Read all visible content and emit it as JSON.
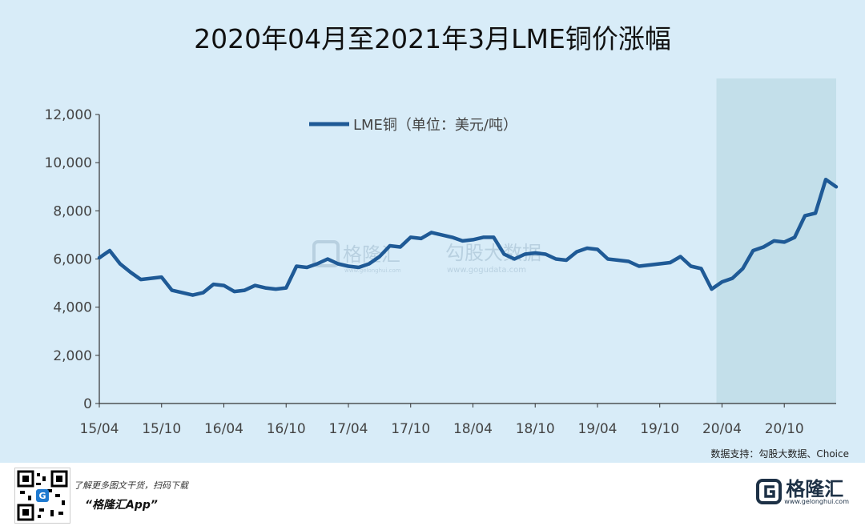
{
  "title": "2020年04月至2021年3月LME铜价涨幅",
  "source": "数据支持：勾股大数据、Choice",
  "footer": {
    "promo_text": "了解更多图文干货，扫码下载",
    "app_name": "“格隆汇App”",
    "logo_text": "格隆汇",
    "logo_url": "www.gelonghui.com"
  },
  "watermark": {
    "brand1": "格隆汇",
    "brand1_url": "www.gelonghui.com",
    "brand2": "勾股大数据",
    "brand2_url": "www.gogudata.com"
  },
  "colors": {
    "background": "#d8ecf8",
    "line": "#1f5a96",
    "shade": "#c3dfea",
    "axis": "#333333"
  },
  "chart_data": {
    "type": "line",
    "legend": "LME铜（单位：美元/吨）",
    "legend_position": "top-center",
    "ylim": [
      0,
      12000
    ],
    "yticks": [
      0,
      2000,
      4000,
      6000,
      8000,
      10000,
      12000
    ],
    "ytick_labels": [
      "0",
      "2,000",
      "4,000",
      "6,000",
      "8,000",
      "10,000",
      "12,000"
    ],
    "xtick_labels": [
      "15/04",
      "15/10",
      "16/04",
      "16/10",
      "17/04",
      "17/10",
      "18/04",
      "18/10",
      "19/04",
      "19/10",
      "20/04",
      "20/10"
    ],
    "x_start": "2015-04",
    "x_end": "2021-03",
    "highlight_range": [
      "2020-03",
      "2021-03"
    ],
    "grid": false,
    "series": [
      {
        "name": "LME铜（单位：美元/吨）",
        "x": [
          "2015-04",
          "2015-05",
          "2015-06",
          "2015-07",
          "2015-08",
          "2015-09",
          "2015-10",
          "2015-11",
          "2015-12",
          "2016-01",
          "2016-02",
          "2016-03",
          "2016-04",
          "2016-05",
          "2016-06",
          "2016-07",
          "2016-08",
          "2016-09",
          "2016-10",
          "2016-11",
          "2016-12",
          "2017-01",
          "2017-02",
          "2017-03",
          "2017-04",
          "2017-05",
          "2017-06",
          "2017-07",
          "2017-08",
          "2017-09",
          "2017-10",
          "2017-11",
          "2017-12",
          "2018-01",
          "2018-02",
          "2018-03",
          "2018-04",
          "2018-05",
          "2018-06",
          "2018-07",
          "2018-08",
          "2018-09",
          "2018-10",
          "2018-11",
          "2018-12",
          "2019-01",
          "2019-02",
          "2019-03",
          "2019-04",
          "2019-05",
          "2019-06",
          "2019-07",
          "2019-08",
          "2019-09",
          "2019-10",
          "2019-11",
          "2019-12",
          "2020-01",
          "2020-02",
          "2020-03",
          "2020-04",
          "2020-05",
          "2020-06",
          "2020-07",
          "2020-08",
          "2020-09",
          "2020-10",
          "2020-11",
          "2020-12",
          "2021-01",
          "2021-02",
          "2021-03"
        ],
        "values": [
          6050,
          6350,
          5800,
          5450,
          5150,
          5200,
          5250,
          4700,
          4600,
          4500,
          4600,
          4950,
          4900,
          4650,
          4700,
          4900,
          4800,
          4750,
          4800,
          5700,
          5650,
          5800,
          6000,
          5800,
          5700,
          5650,
          5800,
          6100,
          6550,
          6500,
          6900,
          6850,
          7100,
          7000,
          6900,
          6750,
          6800,
          6900,
          6900,
          6200,
          6000,
          6200,
          6250,
          6200,
          6000,
          5950,
          6300,
          6450,
          6400,
          6000,
          5950,
          5900,
          5700,
          5750,
          5800,
          5850,
          6100,
          5700,
          5600,
          4750,
          5050,
          5200,
          5600,
          6350,
          6500,
          6750,
          6700,
          6900,
          7800,
          7900,
          9300,
          9000
        ]
      }
    ]
  }
}
